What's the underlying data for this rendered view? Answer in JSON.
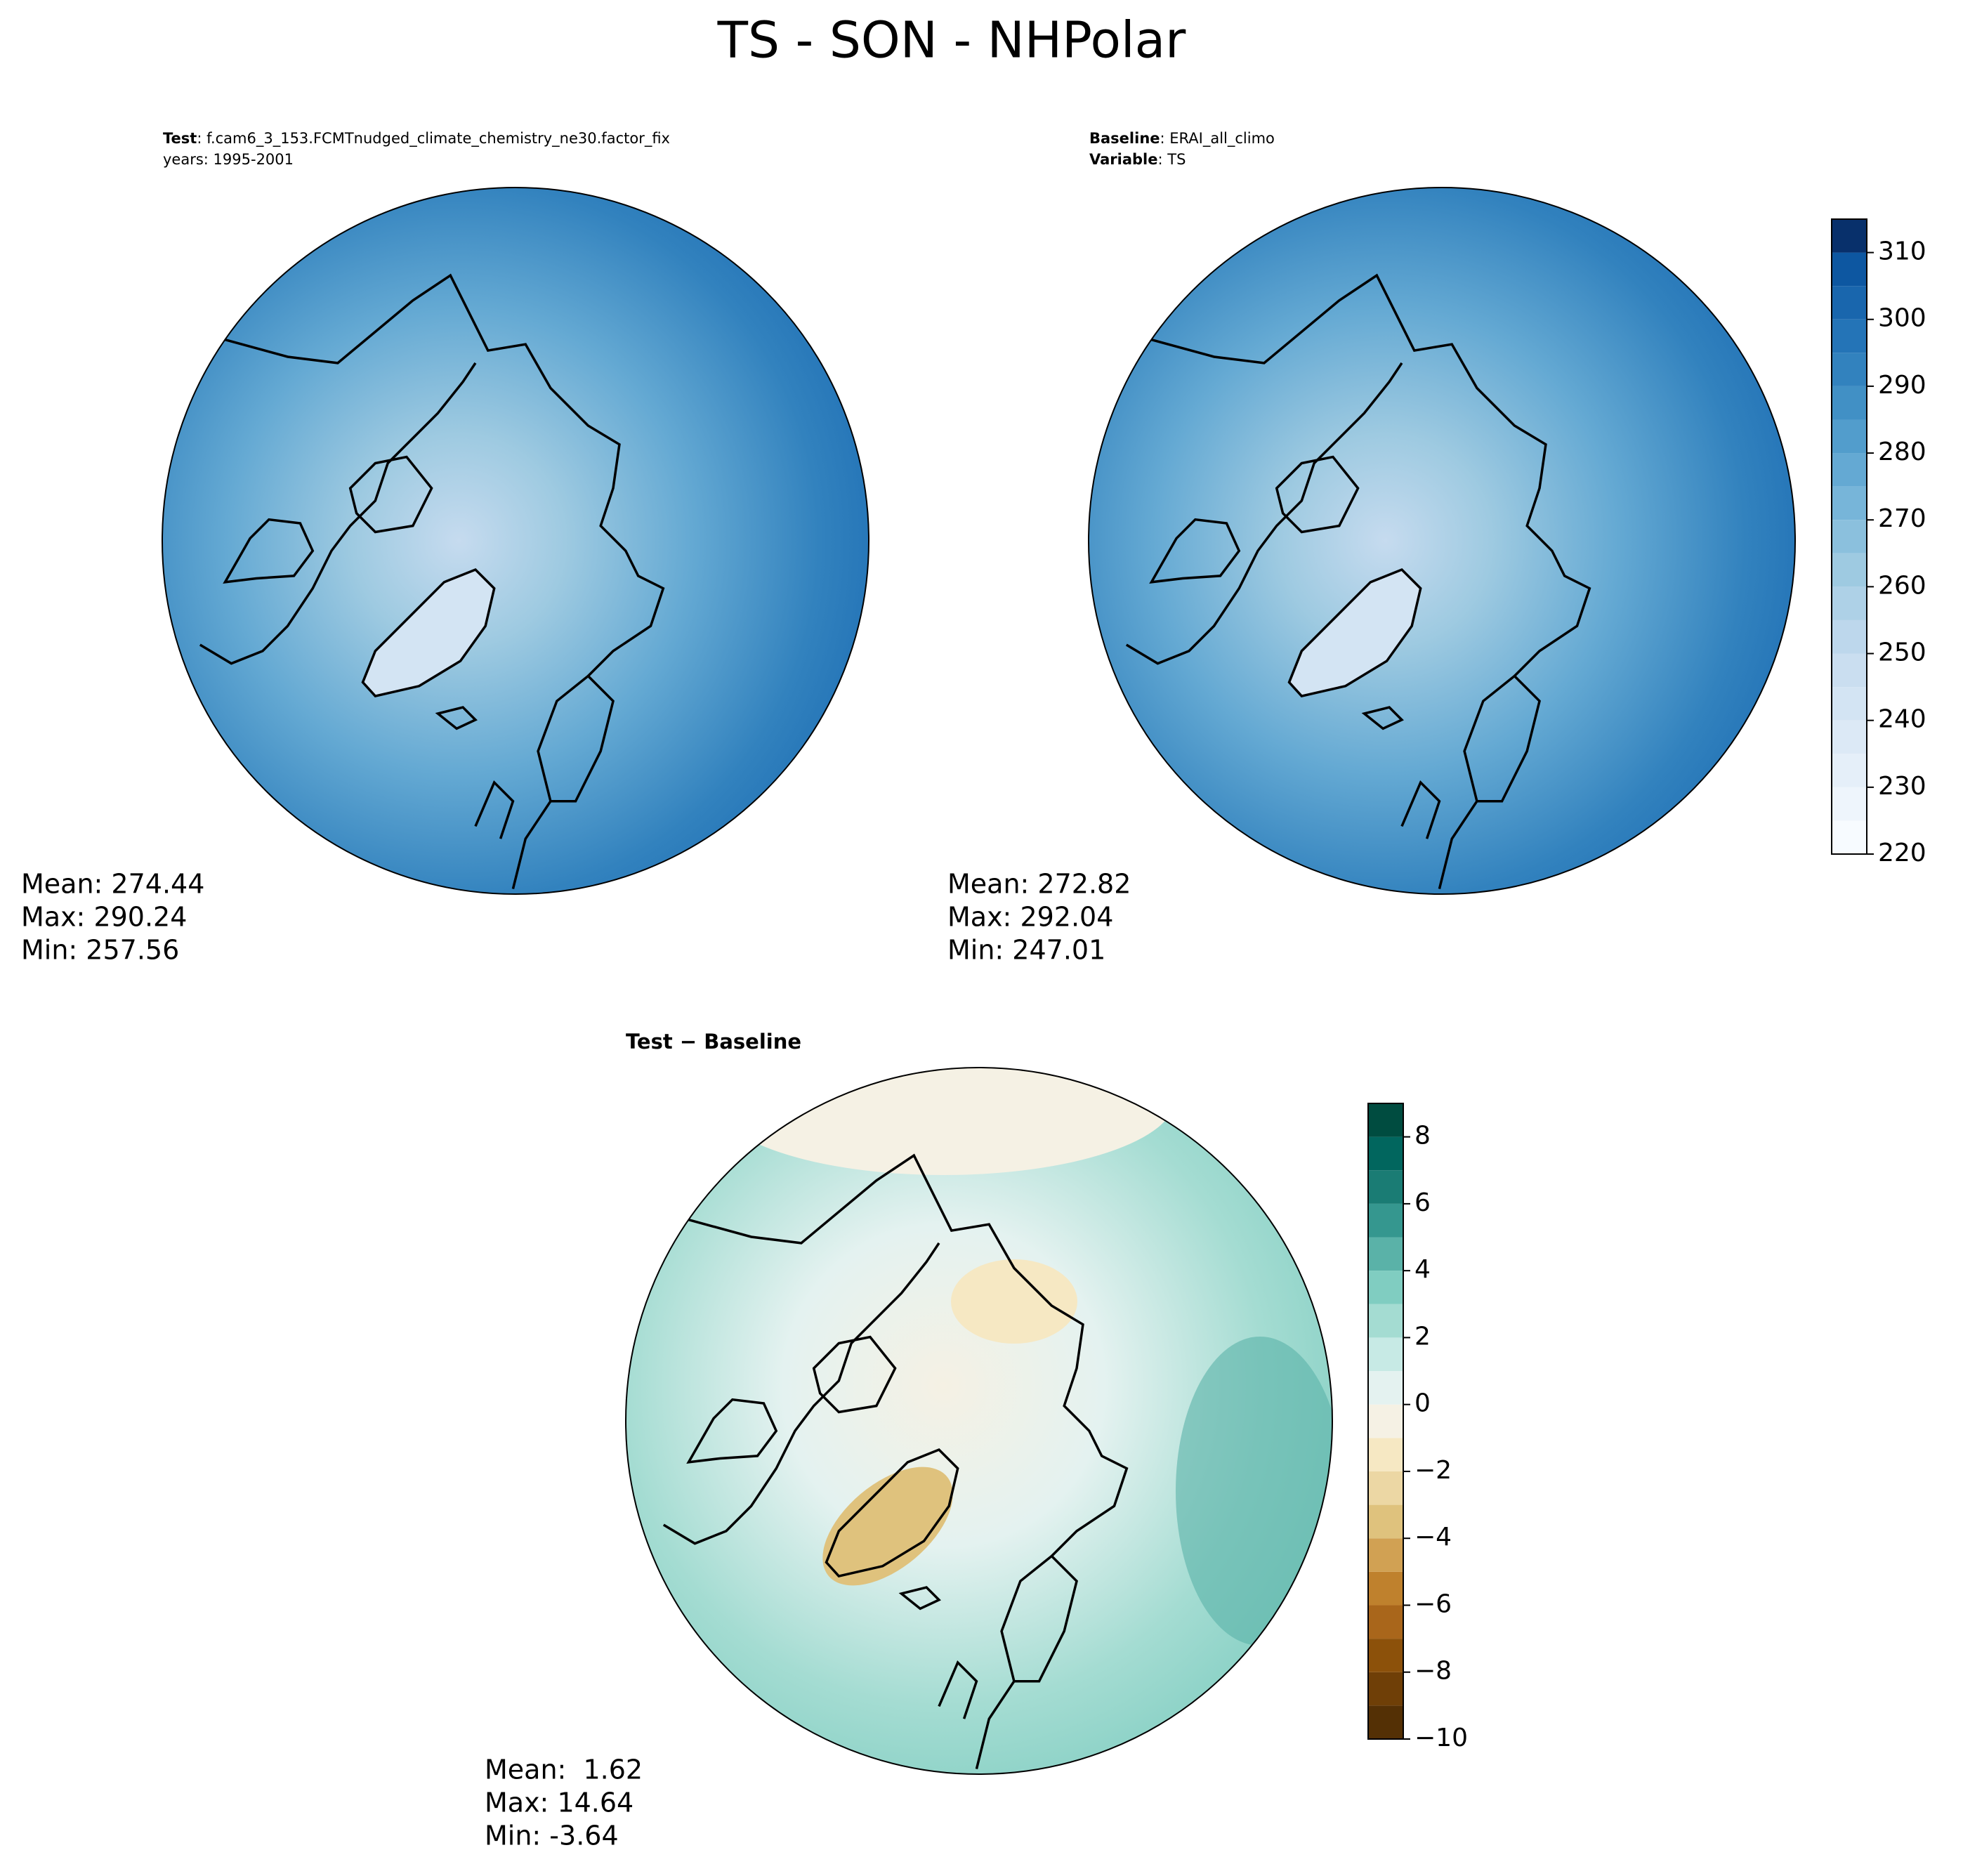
{
  "title": "TS - SON - NHPolar",
  "chart_data": [
    {
      "type": "map",
      "title_label": "Test",
      "title": ": f.cam6_3_153.FCMTnudged_climate_chemistry_ne30.factor_fix",
      "subtitle": "years: 1995-2001",
      "stats": [
        "Mean: 274.44",
        "Max: 290.24",
        "Min: 257.56"
      ]
    },
    {
      "type": "map",
      "title_label": "Baseline",
      "title": ": ERAI_all_climo",
      "subtitle_label": "Variable",
      "subtitle": ": TS",
      "stats": [
        "Mean: 272.82",
        "Max: 292.04",
        "Min: 247.01"
      ],
      "colorbar": {
        "lim": [
          220,
          315
        ],
        "ticks": [
          220,
          230,
          240,
          250,
          260,
          270,
          280,
          290,
          300,
          310
        ],
        "levels": [
          220,
          225,
          230,
          235,
          240,
          245,
          250,
          255,
          260,
          265,
          270,
          275,
          280,
          285,
          290,
          295,
          300,
          305,
          310,
          315
        ],
        "colors": [
          "#f7fbff",
          "#eef5fc",
          "#e5eff9",
          "#dce9f6",
          "#d3e4f3",
          "#cadef0",
          "#bdd7ec",
          "#aed1e7",
          "#9ecae1",
          "#8bc0dd",
          "#77b5d9",
          "#64a9d3",
          "#529dcc",
          "#4190c5",
          "#3282be",
          "#2474b7",
          "#1966ad",
          "#0d57a1",
          "#08306b"
        ]
      }
    },
    {
      "type": "map",
      "title": "Test − Baseline",
      "stats": [
        "Mean:  1.62",
        "Max: 14.64",
        "Min: -3.64"
      ],
      "colorbar": {
        "lim": [
          -10,
          9
        ],
        "ticks": [
          {
            "value": -10,
            "label": "−10"
          },
          {
            "value": -8,
            "label": "−8"
          },
          {
            "value": -6,
            "label": "−6"
          },
          {
            "value": -4,
            "label": "−4"
          },
          {
            "value": -2,
            "label": "−2"
          },
          0,
          2,
          4,
          6,
          8
        ],
        "levels": [
          -10,
          -9,
          -8,
          -7,
          -6,
          -5,
          -4,
          -3,
          -2,
          -1,
          0,
          1,
          2,
          3,
          4,
          5,
          6,
          7,
          8,
          9
        ],
        "colors": [
          "#543005",
          "#6f3f07",
          "#8c510a",
          "#a9661b",
          "#bf812d",
          "#d1a153",
          "#dfc27d",
          "#ecd7a4",
          "#f6e8c3",
          "#f5f1e4",
          "#e4f2f0",
          "#c7eae5",
          "#a4dcd2",
          "#80cdc1",
          "#5ab2a8",
          "#35978f",
          "#1a7c74",
          "#01665e",
          "#004c40"
        ]
      }
    }
  ]
}
